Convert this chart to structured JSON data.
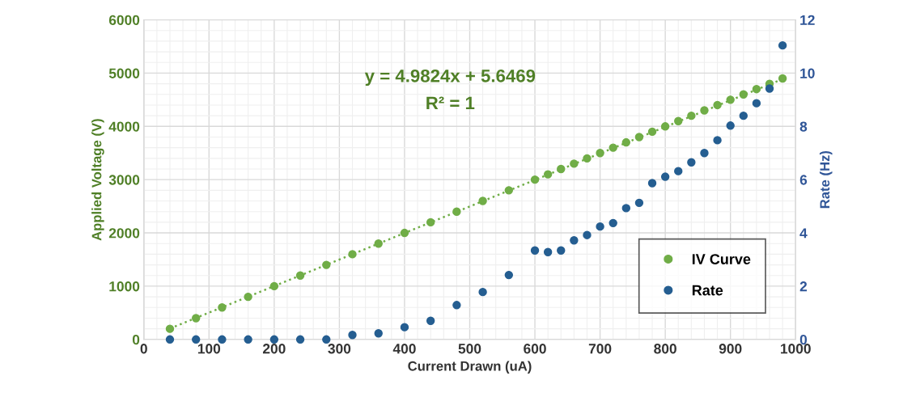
{
  "chart_data": {
    "type": "scatter",
    "xlabel": "Current Drawn (uA)",
    "ylabel": "Applied Voltage (V)",
    "y2label": "Rate (Hz)",
    "annotations": [
      "y = 4.9824x + 5.6469",
      "R² = 1"
    ],
    "xlim": [
      0,
      1000
    ],
    "xticks": [
      0,
      100,
      200,
      300,
      400,
      500,
      600,
      700,
      800,
      900,
      1000
    ],
    "ylim": [
      0,
      6000
    ],
    "yticks": [
      0,
      1000,
      2000,
      3000,
      4000,
      5000,
      6000
    ],
    "y2lim": [
      0,
      12
    ],
    "y2ticks": [
      0,
      2,
      4,
      6,
      8,
      10,
      12
    ],
    "grid": true,
    "legend": "bottom right",
    "marker": "circle",
    "series": [
      {
        "name": "IV Curve",
        "color": "#70ad47",
        "x": [
          40,
          80,
          120,
          160,
          200,
          240,
          280,
          320,
          360,
          400,
          440,
          480,
          520,
          560,
          600,
          620,
          640,
          660,
          680,
          700,
          720,
          740,
          760,
          780,
          800,
          820,
          840,
          860,
          880,
          900,
          920,
          940,
          960,
          980
        ],
        "values": [
          200,
          400,
          600,
          800,
          1000,
          1200,
          1400,
          1600,
          1800,
          2000,
          2200,
          2400,
          2600,
          2800,
          3000,
          3100,
          3200,
          3300,
          3400,
          3500,
          3600,
          3700,
          3800,
          3900,
          4000,
          4100,
          4200,
          4300,
          4400,
          4500,
          4600,
          4700,
          4800,
          4900
        ]
      },
      {
        "name": "Rate",
        "color": "#255e91",
        "axis": "y2",
        "x": [
          40,
          80,
          120,
          160,
          200,
          240,
          280,
          320,
          360,
          400,
          440,
          480,
          520,
          560,
          600,
          620,
          640,
          660,
          680,
          700,
          720,
          740,
          760,
          780,
          800,
          820,
          840,
          860,
          880,
          900,
          920,
          940,
          960,
          980
        ],
        "values": [
          0,
          0,
          0,
          0,
          0,
          0,
          0,
          0.17,
          0.23,
          0.46,
          0.7,
          1.29,
          1.78,
          2.42,
          3.34,
          3.28,
          3.34,
          3.72,
          3.92,
          4.24,
          4.37,
          4.93,
          5.13,
          5.87,
          6.11,
          6.32,
          6.65,
          7.0,
          7.48,
          8.03,
          8.4,
          8.87,
          9.42,
          11.04
        ]
      },
      {
        "type": "line",
        "color": "#70ad47",
        "line_style": "dotted",
        "marker": "none",
        "x": [
          40,
          980
        ],
        "values": [
          205,
          4888
        ]
      }
    ]
  }
}
